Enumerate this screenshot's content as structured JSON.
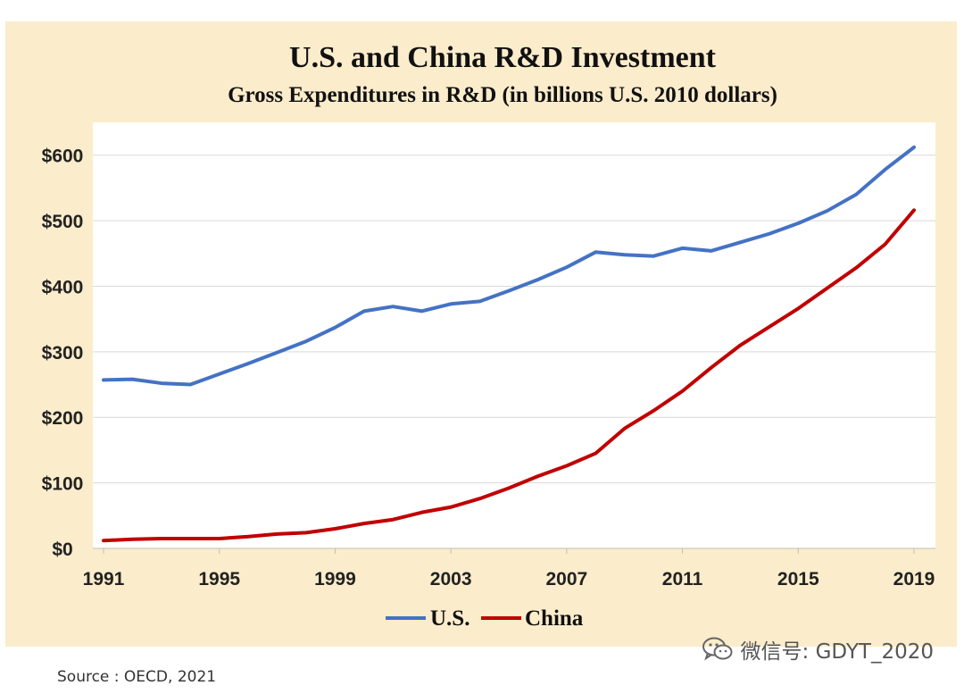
{
  "chart_data": {
    "type": "line",
    "title": "U.S. and China R&D Investment",
    "subtitle": "Gross Expenditures in R&D (in billions U.S. 2010 dollars)",
    "xlabel": "",
    "ylabel": "",
    "x": [
      1991,
      1992,
      1993,
      1994,
      1995,
      1996,
      1997,
      1998,
      1999,
      2000,
      2001,
      2002,
      2003,
      2004,
      2005,
      2006,
      2007,
      2008,
      2009,
      2010,
      2011,
      2012,
      2013,
      2014,
      2015,
      2016,
      2017,
      2018,
      2019
    ],
    "x_ticks": [
      "1991",
      "1995",
      "1999",
      "2003",
      "2007",
      "2011",
      "2015",
      "2019"
    ],
    "y_ticks": [
      "$0",
      "$100",
      "$200",
      "$300",
      "$400",
      "$500",
      "$600"
    ],
    "ylim": [
      0,
      650
    ],
    "xlim": [
      1991,
      2019
    ],
    "grid": "horizontal",
    "legend_position": "bottom-center",
    "series": [
      {
        "name": "U.S.",
        "color": "#4472c4",
        "values": [
          257,
          258,
          252,
          250,
          266,
          282,
          299,
          316,
          337,
          362,
          369,
          362,
          373,
          377,
          393,
          410,
          429,
          452,
          448,
          446,
          458,
          454,
          467,
          480,
          496,
          515,
          540,
          578,
          612
        ]
      },
      {
        "name": "China",
        "color": "#c00000",
        "values": [
          12,
          14,
          15,
          15,
          15,
          18,
          22,
          24,
          30,
          38,
          44,
          55,
          63,
          76,
          92,
          110,
          126,
          145,
          183,
          210,
          240,
          276,
          310,
          338,
          366,
          397,
          428,
          464,
          516
        ]
      }
    ]
  },
  "watermark": {
    "icon": "wechat-icon",
    "text": "微信号: GDYT_2020"
  },
  "source_note": "Source : OECD, 2021"
}
